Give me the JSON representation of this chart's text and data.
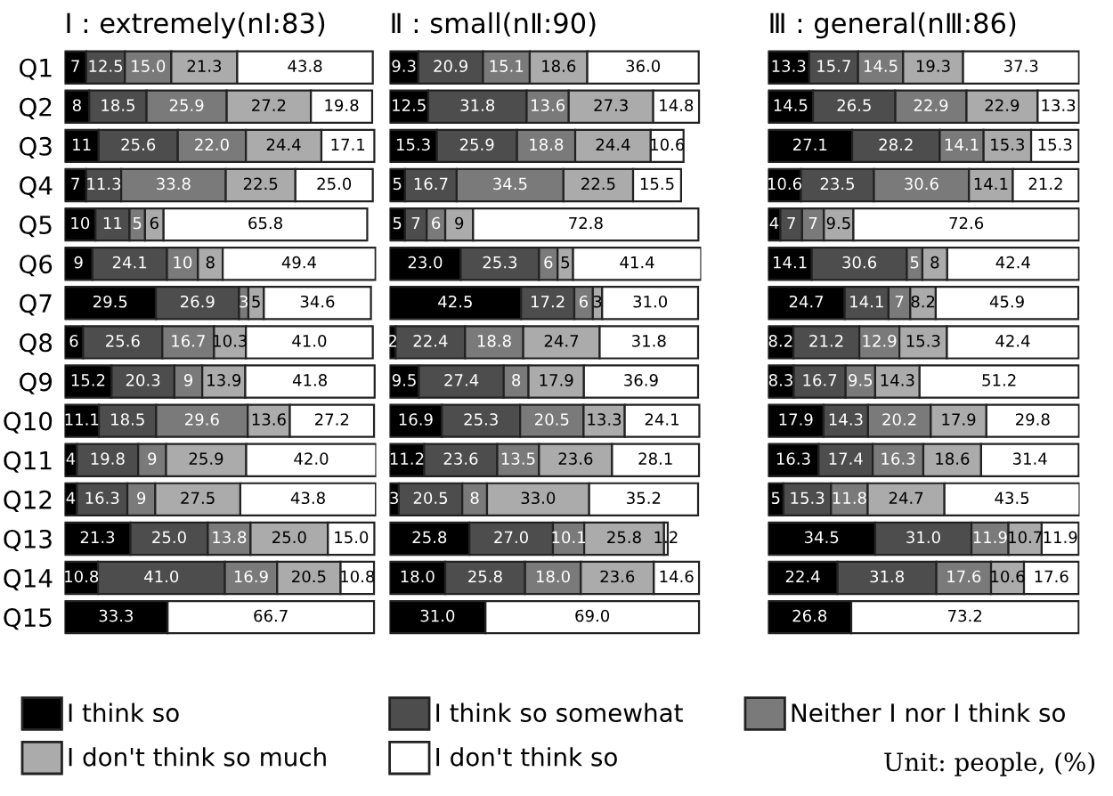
{
  "chart_data": [
    {
      "type": "bar",
      "orientation": "horizontal",
      "stacked": true,
      "title": "Ⅰ : extremely(nⅠ:83)",
      "tick_labels": "y",
      "legend": "bottom",
      "categories": [
        "Q1",
        "Q2",
        "Q3",
        "Q4",
        "Q5",
        "Q6",
        "Q7",
        "Q8",
        "Q9",
        "Q10",
        "Q11",
        "Q12",
        "Q13",
        "Q14",
        "Q15"
      ],
      "series": [
        {
          "name": "I think so",
          "color": "#000000",
          "values": [
            7,
            8,
            11,
            7,
            10,
            9,
            29.5,
            6,
            15.2,
            11.1,
            4,
            4,
            21.3,
            10.8,
            33.3
          ],
          "value_labels": [
            "7",
            "8",
            "11",
            "7",
            "10",
            "9",
            "29.5",
            "6",
            "15.2",
            "11.1",
            "4",
            "4",
            "21.3",
            "10.8",
            "33.3"
          ]
        },
        {
          "name": "I think so somewhat",
          "color": "#4d4d4d",
          "values": [
            12.5,
            18.5,
            25.6,
            11.3,
            11,
            24.1,
            26.9,
            25.6,
            20.3,
            18.5,
            19.8,
            16.3,
            25.0,
            41.0,
            null
          ],
          "value_labels": [
            "12.5",
            "18.5",
            "25.6",
            "11.3",
            "11",
            "24.1",
            "26.9",
            "25.6",
            "20.3",
            "18.5",
            "19.8",
            "16.3",
            "25.0",
            "41.0",
            null
          ]
        },
        {
          "name": "Neither I nor I think so",
          "color": "#7a7a7a",
          "values": [
            15.0,
            25.9,
            22.0,
            33.8,
            5,
            10,
            3,
            16.7,
            9,
            29.6,
            9,
            9,
            13.8,
            16.9,
            null
          ],
          "value_labels": [
            "15.0",
            "25.9",
            "22.0",
            "33.8",
            "5",
            "10",
            "3",
            "16.7",
            "9",
            "29.6",
            "9",
            "9",
            "13.8",
            "16.9",
            null
          ]
        },
        {
          "name": "I don't think so much",
          "color": "#ababab",
          "values": [
            21.3,
            27.2,
            24.4,
            22.5,
            6,
            8,
            5,
            10.3,
            13.9,
            13.6,
            25.9,
            27.5,
            25.0,
            20.5,
            null
          ],
          "value_labels": [
            "21.3",
            "27.2",
            "24.4",
            "22.5",
            "6",
            "8",
            "5",
            "10.3",
            "13.9",
            "13.6",
            "25.9",
            "27.5",
            "25.0",
            "20.5",
            null
          ]
        },
        {
          "name": "I don't think so",
          "color": "#ffffff",
          "values": [
            43.8,
            19.8,
            17.1,
            25.0,
            65.8,
            49.4,
            34.6,
            41.0,
            41.8,
            27.2,
            42.0,
            43.8,
            15.0,
            10.8,
            66.7
          ],
          "value_labels": [
            "43.8",
            "19.8",
            "17.1",
            "25.0",
            "65.8",
            "49.4",
            "34.6",
            "41.0",
            "41.8",
            "27.2",
            "42.0",
            "43.8",
            "15.0",
            "10.8",
            "66.7"
          ]
        }
      ],
      "annotations": [
        "Unit: people, (%)"
      ]
    },
    {
      "type": "bar",
      "orientation": "horizontal",
      "stacked": true,
      "title": "Ⅱ : small(nⅡ:90)",
      "tick_labels": false,
      "categories": [
        null,
        null,
        null,
        null,
        null,
        null,
        null,
        null,
        null,
        null,
        null,
        null,
        null,
        null,
        null
      ],
      "series": [
        {
          "color": "#000000",
          "values": [
            9.3,
            12.5,
            15.3,
            5,
            5,
            23.0,
            42.5,
            2,
            9.5,
            16.9,
            11.2,
            3,
            25.8,
            18.0,
            31.0
          ],
          "value_labels": [
            "9.3",
            "12.5",
            "15.3",
            "5",
            "5",
            "23.0",
            "42.5",
            "2",
            "9.5",
            "16.9",
            "11.2",
            "3",
            "25.8",
            "18.0",
            "31.0"
          ]
        },
        {
          "color": "#4d4d4d",
          "values": [
            20.9,
            31.8,
            25.9,
            16.7,
            7,
            25.3,
            17.2,
            22.4,
            27.4,
            25.3,
            23.6,
            20.5,
            27.0,
            25.8,
            null
          ],
          "value_labels": [
            "20.9",
            "31.8",
            "25.9",
            "16.7",
            "7",
            "25.3",
            "17.2",
            "22.4",
            "27.4",
            "25.3",
            "23.6",
            "20.5",
            "27.0",
            "25.8",
            null
          ]
        },
        {
          "color": "#7a7a7a",
          "values": [
            15.1,
            13.6,
            18.8,
            34.5,
            6,
            6,
            6,
            18.8,
            8,
            20.5,
            13.5,
            8,
            10.1,
            18.0,
            null
          ],
          "value_labels": [
            "15.1",
            "13.6",
            "18.8",
            "34.5",
            "6",
            "6",
            "6",
            "18.8",
            "8",
            "20.5",
            "13.5",
            "8",
            "10.1",
            "18.0",
            null
          ]
        },
        {
          "color": "#ababab",
          "values": [
            18.6,
            27.3,
            24.4,
            22.5,
            9,
            5,
            3,
            24.7,
            17.9,
            13.3,
            23.6,
            33.0,
            25.8,
            23.6,
            null
          ],
          "value_labels": [
            "18.6",
            "27.3",
            "24.4",
            "22.5",
            "9",
            "5",
            "3",
            "24.7",
            "17.9",
            "13.3",
            "23.6",
            "33.0",
            "25.8",
            "23.6",
            null
          ]
        },
        {
          "color": "#ffffff",
          "values": [
            36.0,
            14.8,
            10.6,
            15.5,
            72.8,
            41.4,
            31.0,
            31.8,
            36.9,
            24.1,
            28.1,
            35.2,
            1.2,
            14.6,
            69.0
          ],
          "value_labels": [
            "36.0",
            "14.8",
            "10.6",
            "15.5",
            "72.8",
            "41.4",
            "31.0",
            "31.8",
            "36.9",
            "24.1",
            "28.1",
            "35.2",
            "1.2",
            "14.6",
            "69.0"
          ]
        }
      ]
    },
    {
      "type": "bar",
      "orientation": "horizontal",
      "stacked": true,
      "title": "Ⅲ : general(nⅢ:86)",
      "tick_labels": false,
      "categories": [
        null,
        null,
        null,
        null,
        null,
        null,
        null,
        null,
        null,
        null,
        null,
        null,
        null,
        null,
        null
      ],
      "series": [
        {
          "color": "#000000",
          "values": [
            13.3,
            14.5,
            27.1,
            10.6,
            4,
            14.1,
            24.7,
            8.2,
            8.3,
            17.9,
            16.3,
            5,
            34.5,
            22.4,
            26.8
          ],
          "value_labels": [
            "13.3",
            "14.5",
            "27.1",
            "10.6",
            "4",
            "14.1",
            "24.7",
            "8.2",
            "8.3",
            "17.9",
            "16.3",
            "5",
            "34.5",
            "22.4",
            "26.8"
          ]
        },
        {
          "color": "#4d4d4d",
          "values": [
            15.7,
            26.5,
            28.2,
            23.5,
            7,
            30.6,
            14.1,
            21.2,
            16.7,
            14.3,
            17.4,
            15.3,
            31.0,
            31.8,
            null
          ],
          "value_labels": [
            "15.7",
            "26.5",
            "28.2",
            "23.5",
            "7",
            "30.6",
            "14.1",
            "21.2",
            "16.7",
            "14.3",
            "17.4",
            "15.3",
            "31.0",
            "31.8",
            null
          ]
        },
        {
          "color": "#7a7a7a",
          "values": [
            14.5,
            22.9,
            14.1,
            30.6,
            7,
            5,
            7,
            12.9,
            9.5,
            20.2,
            16.3,
            11.8,
            11.9,
            17.6,
            null
          ],
          "value_labels": [
            "14.5",
            "22.9",
            "14.1",
            "30.6",
            "7",
            "5",
            "7",
            "12.9",
            "9.5",
            "20.2",
            "16.3",
            "11.8",
            "11.9",
            "17.6",
            null
          ]
        },
        {
          "color": "#ababab",
          "values": [
            19.3,
            22.9,
            15.3,
            14.1,
            9.5,
            8,
            8.2,
            15.3,
            14.3,
            17.9,
            18.6,
            24.7,
            10.7,
            10.6,
            null
          ],
          "value_labels": [
            "19.3",
            "22.9",
            "15.3",
            "14.1",
            "9.5",
            "8",
            "8.2",
            "15.3",
            "14.3",
            "17.9",
            "18.6",
            "24.7",
            "10.7",
            "10.6",
            null
          ]
        },
        {
          "color": "#ffffff",
          "values": [
            37.3,
            13.3,
            15.3,
            21.2,
            72.6,
            42.4,
            45.9,
            42.4,
            51.2,
            29.8,
            31.4,
            43.5,
            11.9,
            17.6,
            73.2
          ],
          "value_labels": [
            "37.3",
            "13.3",
            "15.3",
            "21.2",
            "72.6",
            "42.4",
            "45.9",
            "42.4",
            "51.2",
            "29.8",
            "31.4",
            "43.5",
            "11.9",
            "17.6",
            "73.2"
          ]
        }
      ]
    }
  ]
}
